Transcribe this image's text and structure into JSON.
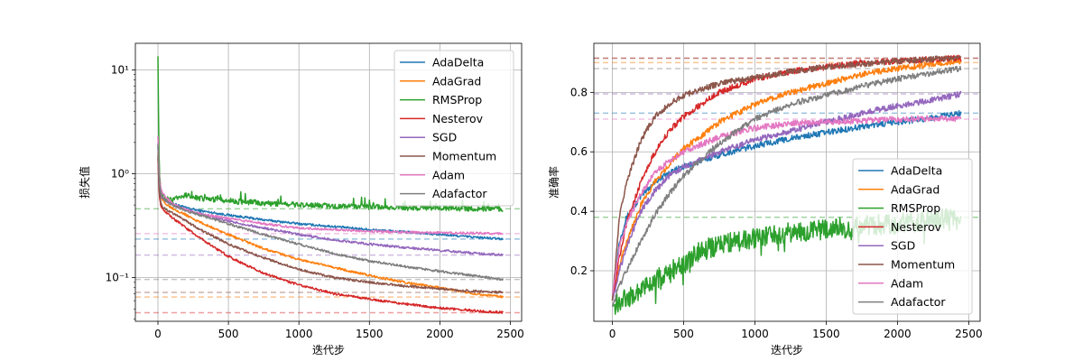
{
  "chart_data": [
    {
      "type": "line",
      "xlabel": "迭代步",
      "ylabel": "损失值",
      "yscale": "log",
      "xlim": [
        -160,
        2580
      ],
      "ylim": [
        0.038,
        18
      ],
      "x_ticks": [
        0,
        500,
        1000,
        1500,
        2000,
        2500
      ],
      "x_tick_labels": [
        "0",
        "500",
        "1000",
        "1500",
        "2000",
        "2500"
      ],
      "y_ticks": [
        0.1,
        1,
        10
      ],
      "y_tick_labels": [
        "10⁻¹",
        "10⁰",
        "10¹"
      ],
      "grid": true,
      "legend_position": "top-right",
      "series": [
        {
          "name": "AdaDelta",
          "color": "#1f77b4",
          "x": [
            0,
            10,
            25,
            50,
            100,
            200,
            300,
            500,
            750,
            1000,
            1250,
            1500,
            1750,
            2000,
            2250,
            2450
          ],
          "values": [
            2.0,
            0.8,
            0.62,
            0.56,
            0.52,
            0.47,
            0.44,
            0.4,
            0.36,
            0.33,
            0.31,
            0.29,
            0.275,
            0.26,
            0.245,
            0.235
          ],
          "final": 0.235
        },
        {
          "name": "AdaGrad",
          "color": "#ff7f0e",
          "x": [
            0,
            10,
            25,
            50,
            100,
            200,
            300,
            500,
            750,
            1000,
            1250,
            1500,
            1750,
            2000,
            2250,
            2450
          ],
          "values": [
            1.6,
            0.75,
            0.58,
            0.52,
            0.47,
            0.4,
            0.34,
            0.26,
            0.19,
            0.15,
            0.125,
            0.105,
            0.09,
            0.08,
            0.07,
            0.065
          ],
          "final": 0.065
        },
        {
          "name": "RMSProp",
          "color": "#2ca02c",
          "x": [
            0,
            5,
            10,
            25,
            50,
            100,
            150,
            200,
            300,
            500,
            750,
            1000,
            1250,
            1500,
            1750,
            2000,
            2250,
            2450
          ],
          "values": [
            13.5,
            3.0,
            1.0,
            0.65,
            0.58,
            0.55,
            0.6,
            0.62,
            0.58,
            0.55,
            0.52,
            0.5,
            0.49,
            0.48,
            0.47,
            0.47,
            0.46,
            0.46
          ],
          "final": 0.46
        },
        {
          "name": "Nesterov",
          "color": "#d62728",
          "x": [
            0,
            10,
            25,
            50,
            100,
            200,
            300,
            500,
            750,
            1000,
            1250,
            1500,
            1750,
            2000,
            2250,
            2450
          ],
          "values": [
            1.4,
            0.6,
            0.47,
            0.43,
            0.38,
            0.3,
            0.24,
            0.16,
            0.11,
            0.085,
            0.07,
            0.062,
            0.056,
            0.051,
            0.048,
            0.046
          ],
          "final": 0.046
        },
        {
          "name": "SGD",
          "color": "#9467bd",
          "x": [
            0,
            10,
            25,
            50,
            100,
            200,
            300,
            500,
            750,
            1000,
            1250,
            1500,
            1750,
            2000,
            2250,
            2450
          ],
          "values": [
            1.8,
            0.75,
            0.6,
            0.55,
            0.5,
            0.45,
            0.41,
            0.35,
            0.3,
            0.26,
            0.23,
            0.21,
            0.195,
            0.183,
            0.172,
            0.165
          ],
          "final": 0.165
        },
        {
          "name": "Momentum",
          "color": "#8c564b",
          "x": [
            0,
            10,
            25,
            50,
            100,
            200,
            300,
            500,
            750,
            1000,
            1250,
            1500,
            1750,
            2000,
            2250,
            2450
          ],
          "values": [
            1.5,
            0.65,
            0.5,
            0.46,
            0.42,
            0.35,
            0.29,
            0.21,
            0.155,
            0.12,
            0.1,
            0.09,
            0.083,
            0.078,
            0.074,
            0.072
          ],
          "final": 0.072
        },
        {
          "name": "Adam",
          "color": "#e377c2",
          "x": [
            0,
            10,
            25,
            50,
            100,
            200,
            300,
            500,
            750,
            1000,
            1250,
            1500,
            1750,
            2000,
            2250,
            2450
          ],
          "values": [
            2.3,
            0.9,
            0.68,
            0.6,
            0.52,
            0.45,
            0.41,
            0.37,
            0.33,
            0.3,
            0.29,
            0.28,
            0.275,
            0.27,
            0.268,
            0.265
          ],
          "final": 0.265
        },
        {
          "name": "Adafactor",
          "color": "#7f7f7f",
          "x": [
            0,
            10,
            25,
            50,
            100,
            200,
            300,
            500,
            750,
            1000,
            1250,
            1500,
            1750,
            2000,
            2250,
            2450
          ],
          "values": [
            1.9,
            0.8,
            0.62,
            0.56,
            0.5,
            0.44,
            0.4,
            0.33,
            0.26,
            0.21,
            0.17,
            0.145,
            0.128,
            0.115,
            0.104,
            0.096
          ],
          "final": 0.096
        }
      ]
    },
    {
      "type": "line",
      "xlabel": "迭代步",
      "ylabel": "准确率",
      "yscale": "linear",
      "xlim": [
        -130,
        2580
      ],
      "ylim": [
        0.03,
        0.965
      ],
      "x_ticks": [
        0,
        500,
        1000,
        1500,
        2000,
        2500
      ],
      "x_tick_labels": [
        "0",
        "500",
        "1000",
        "1500",
        "2000",
        "2500"
      ],
      "y_ticks": [
        0.2,
        0.4,
        0.6,
        0.8
      ],
      "y_tick_labels": [
        "0.2",
        "0.4",
        "0.6",
        "0.8"
      ],
      "grid": true,
      "legend_position": "center-right",
      "series": [
        {
          "name": "AdaDelta",
          "color": "#1f77b4",
          "x": [
            0,
            50,
            100,
            200,
            300,
            400,
            500,
            750,
            1000,
            1250,
            1500,
            1750,
            2000,
            2250,
            2450
          ],
          "values": [
            0.1,
            0.3,
            0.38,
            0.45,
            0.5,
            0.53,
            0.55,
            0.59,
            0.62,
            0.645,
            0.665,
            0.685,
            0.7,
            0.715,
            0.73
          ],
          "final": 0.73
        },
        {
          "name": "AdaGrad",
          "color": "#ff7f0e",
          "x": [
            0,
            50,
            100,
            200,
            300,
            400,
            500,
            750,
            1000,
            1250,
            1500,
            1750,
            2000,
            2250,
            2450
          ],
          "values": [
            0.1,
            0.22,
            0.3,
            0.42,
            0.5,
            0.56,
            0.61,
            0.7,
            0.76,
            0.8,
            0.83,
            0.86,
            0.88,
            0.895,
            0.905
          ],
          "final": 0.9
        },
        {
          "name": "RMSProp",
          "color": "#2ca02c",
          "x": [
            0,
            50,
            100,
            200,
            300,
            400,
            500,
            600,
            750,
            1000,
            1250,
            1500,
            1750,
            2000,
            2250,
            2450
          ],
          "values": [
            0.08,
            0.1,
            0.11,
            0.13,
            0.17,
            0.2,
            0.22,
            0.26,
            0.29,
            0.31,
            0.33,
            0.34,
            0.35,
            0.36,
            0.37,
            0.38
          ],
          "final": 0.38
        },
        {
          "name": "Nesterov",
          "color": "#d62728",
          "x": [
            0,
            50,
            100,
            200,
            300,
            400,
            500,
            750,
            1000,
            1250,
            1500,
            1750,
            2000,
            2250,
            2450
          ],
          "values": [
            0.1,
            0.25,
            0.36,
            0.5,
            0.6,
            0.67,
            0.72,
            0.8,
            0.845,
            0.87,
            0.885,
            0.9,
            0.905,
            0.912,
            0.915
          ],
          "final": 0.915
        },
        {
          "name": "SGD",
          "color": "#9467bd",
          "x": [
            0,
            50,
            100,
            200,
            300,
            400,
            500,
            750,
            1000,
            1250,
            1500,
            1750,
            2000,
            2250,
            2450
          ],
          "values": [
            0.1,
            0.2,
            0.28,
            0.4,
            0.47,
            0.52,
            0.55,
            0.6,
            0.64,
            0.67,
            0.7,
            0.73,
            0.755,
            0.775,
            0.795
          ],
          "final": 0.795
        },
        {
          "name": "Momentum",
          "color": "#8c564b",
          "x": [
            0,
            50,
            100,
            200,
            300,
            400,
            500,
            750,
            1000,
            1250,
            1500,
            1750,
            2000,
            2250,
            2450
          ],
          "values": [
            0.1,
            0.38,
            0.5,
            0.64,
            0.72,
            0.76,
            0.79,
            0.83,
            0.85,
            0.87,
            0.885,
            0.895,
            0.905,
            0.912,
            0.915
          ],
          "final": 0.915
        },
        {
          "name": "Adam",
          "color": "#e377c2",
          "x": [
            0,
            50,
            100,
            200,
            300,
            400,
            500,
            750,
            1000,
            1250,
            1500,
            1750,
            2000,
            2250,
            2450
          ],
          "values": [
            0.12,
            0.28,
            0.36,
            0.46,
            0.53,
            0.57,
            0.6,
            0.65,
            0.68,
            0.695,
            0.7,
            0.705,
            0.71,
            0.712,
            0.712
          ],
          "final": 0.71
        },
        {
          "name": "Adafactor",
          "color": "#7f7f7f",
          "x": [
            0,
            50,
            100,
            200,
            300,
            400,
            500,
            750,
            1000,
            1250,
            1500,
            1750,
            2000,
            2250,
            2450
          ],
          "values": [
            0.08,
            0.15,
            0.2,
            0.3,
            0.39,
            0.46,
            0.52,
            0.63,
            0.71,
            0.76,
            0.79,
            0.82,
            0.845,
            0.865,
            0.88
          ],
          "final": 0.88
        }
      ]
    }
  ]
}
